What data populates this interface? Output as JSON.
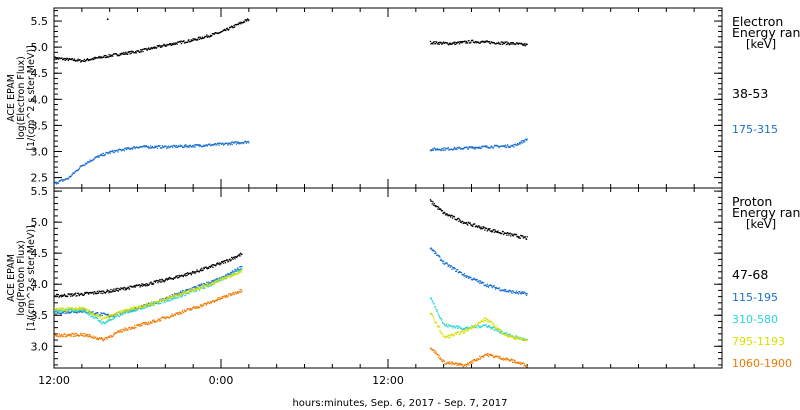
{
  "chart_data": [
    {
      "type": "scatter",
      "panel": "electron",
      "ylabel": [
        "ACE EPAM",
        "log(Electron Flux)",
        "[1/(cm^2 s ster MeV)]"
      ],
      "ylim": [
        2.3,
        5.75
      ],
      "yticks": [
        "2.5",
        "3.0",
        "3.5",
        "4.0",
        "4.5",
        "5.0",
        "5.5"
      ],
      "legend_title": [
        "Electron",
        "Energy range",
        "[keV]"
      ],
      "series": [
        {
          "name": "38-53",
          "color": "#000000",
          "segments": [
            {
              "x": [
                0,
                2,
                4,
                6,
                8,
                10,
                12,
                14
              ],
              "y": [
                4.8,
                4.75,
                4.85,
                4.93,
                5.05,
                5.15,
                5.3,
                5.55
              ]
            },
            {
              "x": [
                27,
                28.5,
                30,
                31.5,
                33,
                34
              ],
              "y": [
                5.1,
                5.08,
                5.12,
                5.1,
                5.08,
                5.05
              ]
            }
          ],
          "points": [
            [
              3.8,
              5.55
            ]
          ]
        },
        {
          "name": "175-315",
          "color": "#1a6fd0",
          "segments": [
            {
              "x": [
                0,
                1,
                2,
                3,
                4,
                5,
                6,
                8,
                10,
                12,
                14
              ],
              "y": [
                2.4,
                2.5,
                2.75,
                2.9,
                3.0,
                3.05,
                3.1,
                3.1,
                3.12,
                3.15,
                3.2
              ]
            },
            {
              "x": [
                27,
                29,
                31,
                33,
                34
              ],
              "y": [
                3.05,
                3.07,
                3.1,
                3.12,
                3.25
              ]
            }
          ]
        }
      ]
    },
    {
      "type": "scatter",
      "panel": "proton",
      "ylabel": [
        "ACE EPAM",
        "log(Proton Flux)",
        "[1/(cm^2 s ster MeV)]"
      ],
      "ylim": [
        2.65,
        5.55
      ],
      "yticks": [
        "3.0",
        "3.5",
        "4.0",
        "4.5",
        "5.0",
        "5.5"
      ],
      "legend_title": [
        "Proton",
        "Energy range",
        "[keV]"
      ],
      "series": [
        {
          "name": "47-68",
          "color": "#000000",
          "segments": [
            {
              "x": [
                0,
                2,
                4,
                6,
                8,
                10,
                12,
                13.5
              ],
              "y": [
                3.82,
                3.85,
                3.9,
                3.98,
                4.08,
                4.2,
                4.35,
                4.5
              ]
            },
            {
              "x": [
                27,
                28,
                29.5,
                31,
                32.5,
                34
              ],
              "y": [
                5.35,
                5.15,
                5.0,
                4.9,
                4.82,
                4.75
              ]
            }
          ]
        },
        {
          "name": "115-195",
          "color": "#1a6fd0",
          "segments": [
            {
              "x": [
                0,
                2,
                4,
                6,
                8,
                10,
                12,
                13.5
              ],
              "y": [
                3.55,
                3.58,
                3.5,
                3.62,
                3.78,
                3.95,
                4.1,
                4.3
              ]
            },
            {
              "x": [
                27,
                28,
                29.5,
                31,
                32.5,
                34
              ],
              "y": [
                4.6,
                4.35,
                4.15,
                4.0,
                3.9,
                3.85
              ]
            }
          ]
        },
        {
          "name": "310-580",
          "color": "#2bd4d4",
          "segments": [
            {
              "x": [
                0,
                2,
                3.5,
                5,
                7,
                9,
                11,
                13.5
              ],
              "y": [
                3.58,
                3.6,
                3.38,
                3.55,
                3.68,
                3.82,
                3.98,
                4.25
              ]
            },
            {
              "x": [
                27,
                28,
                29.5,
                31,
                32.5,
                34
              ],
              "y": [
                3.8,
                3.35,
                3.3,
                3.35,
                3.2,
                3.1
              ]
            }
          ]
        },
        {
          "name": "795-1193",
          "color": "#d8e000",
          "segments": [
            {
              "x": [
                0,
                2,
                3.5,
                5,
                7,
                9,
                11,
                13.5
              ],
              "y": [
                3.6,
                3.62,
                3.45,
                3.58,
                3.7,
                3.85,
                4.0,
                4.22
              ]
            },
            {
              "x": [
                27,
                28,
                29.5,
                31,
                32.5,
                34
              ],
              "y": [
                3.55,
                3.15,
                3.25,
                3.45,
                3.18,
                3.1
              ]
            }
          ]
        },
        {
          "name": "1060-1900",
          "color": "#ee7a00",
          "segments": [
            {
              "x": [
                0,
                2,
                3.5,
                5,
                7,
                9,
                11,
                13.5
              ],
              "y": [
                3.18,
                3.2,
                3.12,
                3.28,
                3.4,
                3.55,
                3.7,
                3.92
              ]
            },
            {
              "x": [
                27,
                28,
                29.5,
                31,
                32.5,
                34
              ],
              "y": [
                3.0,
                2.75,
                2.7,
                2.88,
                2.8,
                2.7
              ]
            }
          ]
        }
      ]
    }
  ],
  "xaxis": {
    "xlim": [
      0,
      48
    ],
    "ticks": [
      {
        "x": 0,
        "label": "12:00"
      },
      {
        "x": 12,
        "label": "0:00"
      },
      {
        "x": 24,
        "label": "12:00"
      }
    ],
    "minor_ticks": [
      2,
      4,
      6,
      8,
      10,
      14,
      16,
      18,
      20,
      22,
      26,
      28,
      30,
      32,
      34,
      36,
      38,
      40,
      42,
      44,
      46
    ],
    "label": "hours:minutes, Sep.  6, 2017 - Sep.  7, 2017"
  }
}
